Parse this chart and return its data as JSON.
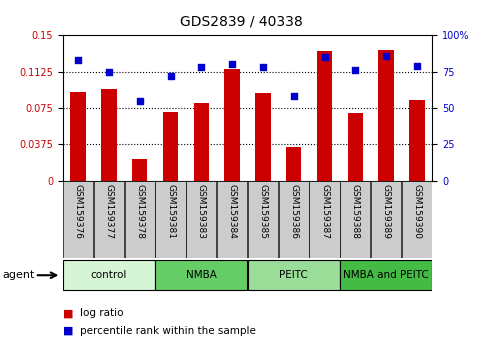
{
  "title": "GDS2839 / 40338",
  "samples": [
    "GSM159376",
    "GSM159377",
    "GSM159378",
    "GSM159381",
    "GSM159383",
    "GSM159384",
    "GSM159385",
    "GSM159386",
    "GSM159387",
    "GSM159388",
    "GSM159389",
    "GSM159390"
  ],
  "log_ratio": [
    0.091,
    0.095,
    0.022,
    0.071,
    0.08,
    0.115,
    0.09,
    0.035,
    0.134,
    0.07,
    0.135,
    0.083
  ],
  "percentile_rank": [
    83,
    75,
    55,
    72,
    78,
    80,
    78,
    58,
    85,
    76,
    86,
    79
  ],
  "groups": [
    {
      "label": "control",
      "start": 0,
      "end": 3,
      "color": "#d6f5d6"
    },
    {
      "label": "NMBA",
      "start": 3,
      "end": 6,
      "color": "#66cc66"
    },
    {
      "label": "PEITC",
      "start": 6,
      "end": 9,
      "color": "#99dd99"
    },
    {
      "label": "NMBA and PEITC",
      "start": 9,
      "end": 12,
      "color": "#44bb44"
    }
  ],
  "ylim_left": [
    0,
    0.15
  ],
  "ylim_right": [
    0,
    100
  ],
  "yticks_left": [
    0,
    0.0375,
    0.075,
    0.1125,
    0.15
  ],
  "ytick_labels_left": [
    "0",
    "0.0375",
    "0.075",
    "0.1125",
    "0.15"
  ],
  "yticks_right": [
    0,
    25,
    50,
    75,
    100
  ],
  "ytick_labels_right": [
    "0",
    "25",
    "50",
    "75",
    "100%"
  ],
  "bar_color": "#cc0000",
  "dot_color": "#0000cc",
  "tick_label_color_left": "#cc0000",
  "tick_label_color_right": "#0000cc",
  "legend_items": [
    "log ratio",
    "percentile rank within the sample"
  ],
  "agent_label": "agent",
  "xtick_bg": "#cccccc",
  "bar_width": 0.5
}
